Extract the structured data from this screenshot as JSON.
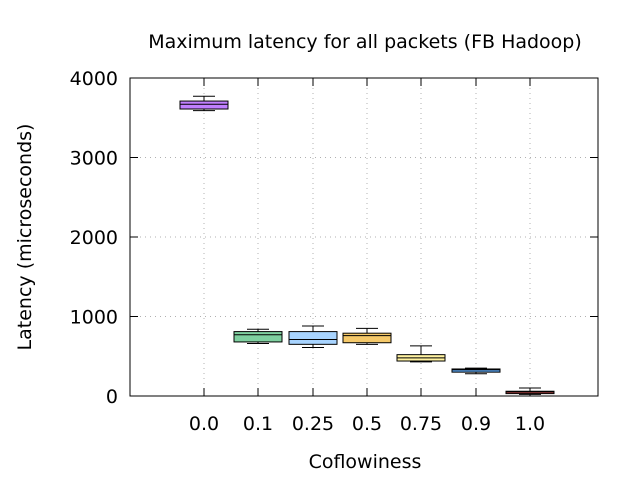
{
  "chart_data": {
    "type": "box",
    "title": "Maximum latency for all packets (FB Hadoop)",
    "xlabel": "Coflowiness",
    "ylabel": "Latency (microseconds)",
    "ylim": [
      0,
      4000
    ],
    "yticks": [
      0,
      1000,
      2000,
      3000,
      4000
    ],
    "grid": true,
    "categories": [
      "0.0",
      "0.1",
      "0.25",
      "0.5",
      "0.75",
      "0.9",
      "1.0"
    ],
    "boxes": [
      {
        "category": "0.0",
        "min": 3590,
        "q1": 3610,
        "median": 3670,
        "q3": 3710,
        "max": 3770,
        "color": "#c080ff"
      },
      {
        "category": "0.1",
        "min": 660,
        "q1": 680,
        "median": 770,
        "q3": 810,
        "max": 840,
        "color": "#7fd0a0"
      },
      {
        "category": "0.25",
        "min": 610,
        "q1": 650,
        "median": 710,
        "q3": 810,
        "max": 880,
        "color": "#a8d4ff"
      },
      {
        "category": "0.5",
        "min": 650,
        "q1": 670,
        "median": 760,
        "q3": 790,
        "max": 850,
        "color": "#f5c96a"
      },
      {
        "category": "0.75",
        "min": 430,
        "q1": 440,
        "median": 480,
        "q3": 520,
        "max": 630,
        "color": "#fff2a0"
      },
      {
        "category": "0.9",
        "min": 280,
        "q1": 300,
        "median": 330,
        "q3": 340,
        "max": 350,
        "color": "#5aa0e8"
      },
      {
        "category": "1.0",
        "min": 20,
        "q1": 30,
        "median": 50,
        "q3": 60,
        "max": 100,
        "color": "#e85a5a"
      }
    ]
  }
}
